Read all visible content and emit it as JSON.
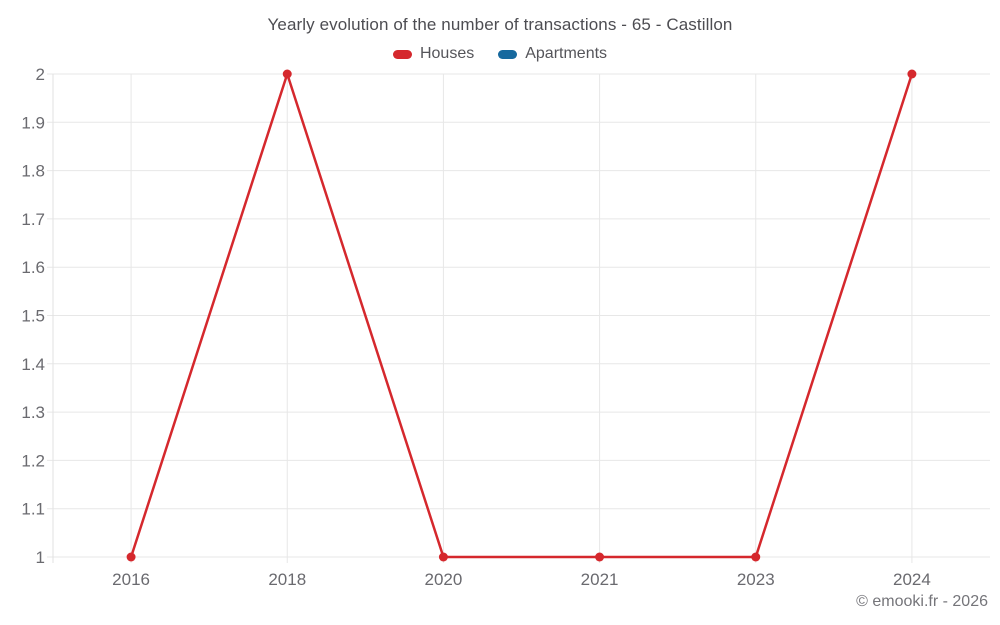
{
  "chart_data": {
    "type": "line",
    "title": "Yearly evolution of the number of transactions - 65 - Castillon",
    "categories": [
      "2016",
      "2018",
      "2020",
      "2021",
      "2023",
      "2024"
    ],
    "series": [
      {
        "name": "Houses",
        "color": "#d5282d",
        "values": [
          1,
          2,
          1,
          1,
          1,
          2
        ]
      },
      {
        "name": "Apartments",
        "color": "#17699e",
        "values": []
      }
    ],
    "xlabel": "",
    "ylabel": "",
    "ylim": [
      1,
      2
    ],
    "y_ticks": [
      1,
      1.1,
      1.2,
      1.3,
      1.4,
      1.5,
      1.6,
      1.7,
      1.8,
      1.9,
      2
    ],
    "grid": true,
    "legend_position": "top",
    "marker": "circle"
  },
  "style": {
    "background": "#ffffff",
    "grid_color": "#e7e7e7",
    "axis_color": "#e2e2e2",
    "tick_text_color": "#6a6a6f",
    "title_color": "#4d4d52",
    "legend_text_color": "#55555a",
    "footer_text_color": "#75757a"
  },
  "footer": {
    "credit": "© emooki.fr - 2026"
  }
}
